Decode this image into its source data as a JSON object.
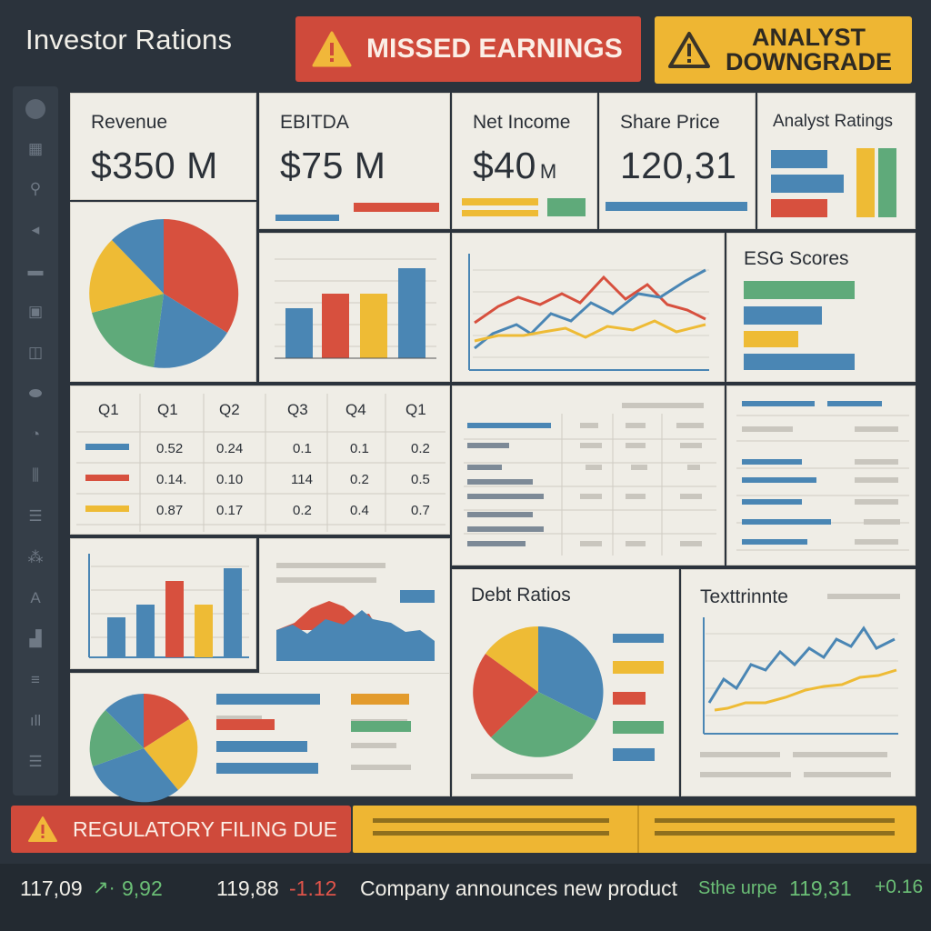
{
  "header": {
    "title": "Investor Rations",
    "alerts": {
      "missed": "MISSED EARNINGS",
      "downgrade_line1": "ANALYST",
      "downgrade_line2": "DOWNGRADE"
    }
  },
  "sidebar": {
    "icons": [
      "circle-icon",
      "building-icon",
      "location-pin-icon",
      "megaphone-icon",
      "card-icon",
      "document-icon",
      "folder-icon",
      "pill-icon",
      "gauge-icon",
      "bank-icon",
      "list-icon",
      "share-icon",
      "letter-a-icon",
      "chart-icon",
      "menu-icon",
      "bar-chart-icon",
      "hamburger-icon"
    ]
  },
  "kpis": [
    {
      "label": "Revenue",
      "value": "$350 M"
    },
    {
      "label": "EBITDA",
      "value": "$75 M"
    },
    {
      "label": "Net Income",
      "value": "$40",
      "unit": "M"
    },
    {
      "label": "Share Price",
      "value": "120,31"
    },
    {
      "label": "Analyst Ratings"
    }
  ],
  "cards": {
    "esg_title": "ESG Scores",
    "debt_title": "Debt Ratios",
    "trend_title": "Texttrinnte"
  },
  "quarter_table": {
    "headers": [
      "Q1",
      "Q1",
      "Q2",
      "Q3",
      "Q4",
      "Q1"
    ],
    "rows": [
      {
        "color": "#4a86b4",
        "values": [
          "0.52",
          "0.24",
          "0.1",
          "0.1",
          "0.2"
        ]
      },
      {
        "color": "#d7503e",
        "values": [
          "0.14.",
          "0.10",
          "114",
          "0.2",
          "0.5"
        ]
      },
      {
        "color": "#eebb35",
        "values": [
          "0.87",
          "0.17",
          "0.2",
          "0.4",
          "0.7"
        ]
      }
    ]
  },
  "colors": {
    "blue": "#4a86b4",
    "red": "#d7503e",
    "yellow": "#eebb35",
    "green": "#5faa7a"
  },
  "footer": {
    "filing_alert": "REGULATORY FILING DUE"
  },
  "ticker": {
    "price1": "117,09",
    "change1": "9,92",
    "price2": "119,88",
    "change2": "-1.12",
    "headline": "Company announces new product",
    "symbol": "Sthe urpe",
    "price3": "119,31",
    "change3": "+0.16"
  }
}
